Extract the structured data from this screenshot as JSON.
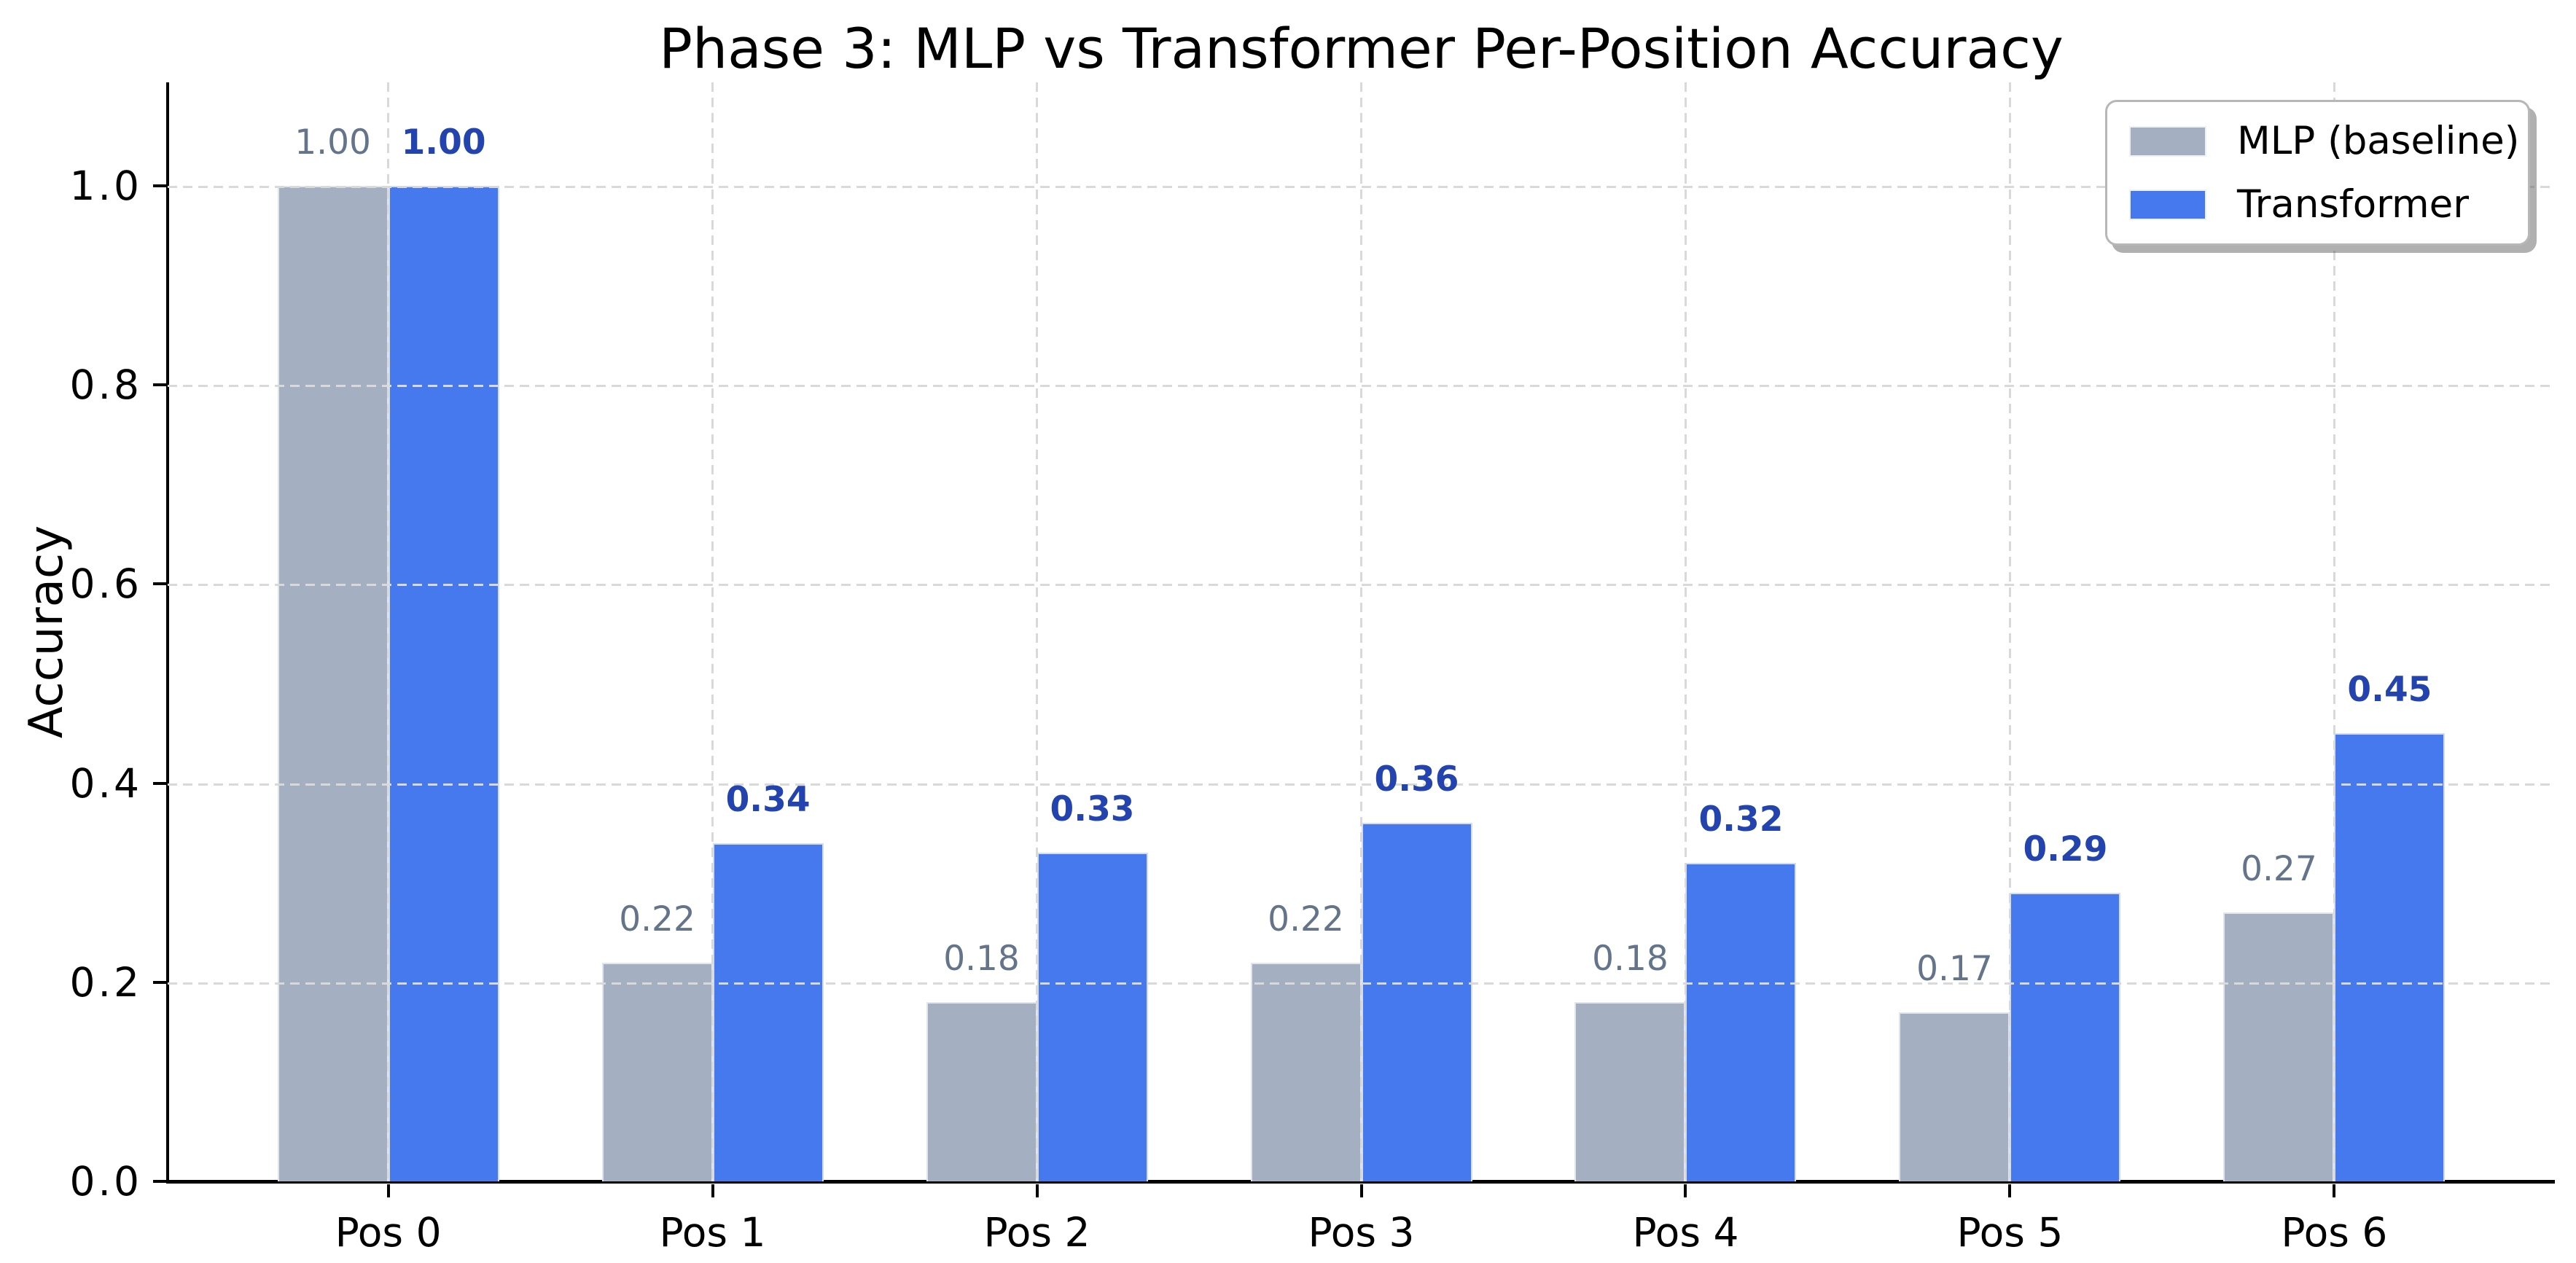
{
  "chart_data": {
    "type": "bar",
    "title": "Phase 3: MLP vs Transformer Per-Position Accuracy",
    "xlabel": "",
    "ylabel": "Accuracy",
    "categories": [
      "Pos 0",
      "Pos 1",
      "Pos 2",
      "Pos 3",
      "Pos 4",
      "Pos 5",
      "Pos 6"
    ],
    "series": [
      {
        "name": "MLP (baseline)",
        "values": [
          1.0,
          0.22,
          0.18,
          0.22,
          0.18,
          0.17,
          0.27
        ],
        "value_labels": [
          "1.00",
          "0.22",
          "0.18",
          "0.22",
          "0.18",
          "0.17",
          "0.27"
        ],
        "bar_color": "#a4afc2",
        "label_color": "#64748b",
        "label_weight": "normal"
      },
      {
        "name": "Transformer",
        "values": [
          1.0,
          0.34,
          0.33,
          0.36,
          0.32,
          0.29,
          0.45
        ],
        "value_labels": [
          "1.00",
          "0.34",
          "0.33",
          "0.36",
          "0.32",
          "0.29",
          "0.45"
        ],
        "bar_color": "#4678ee",
        "label_color": "#2343ae",
        "label_weight": "bold"
      }
    ],
    "yticks": [
      "0.0",
      "0.2",
      "0.4",
      "0.6",
      "0.8",
      "1.0"
    ],
    "ylim": [
      0,
      1.104
    ],
    "grid": "dashed both axes, drawn above bars",
    "legend_position": "top-right"
  },
  "colors": {
    "background": "#ffffff",
    "grid": "#d9d9d9",
    "axis": "#000000",
    "legend_border": "#b7b7b7"
  }
}
